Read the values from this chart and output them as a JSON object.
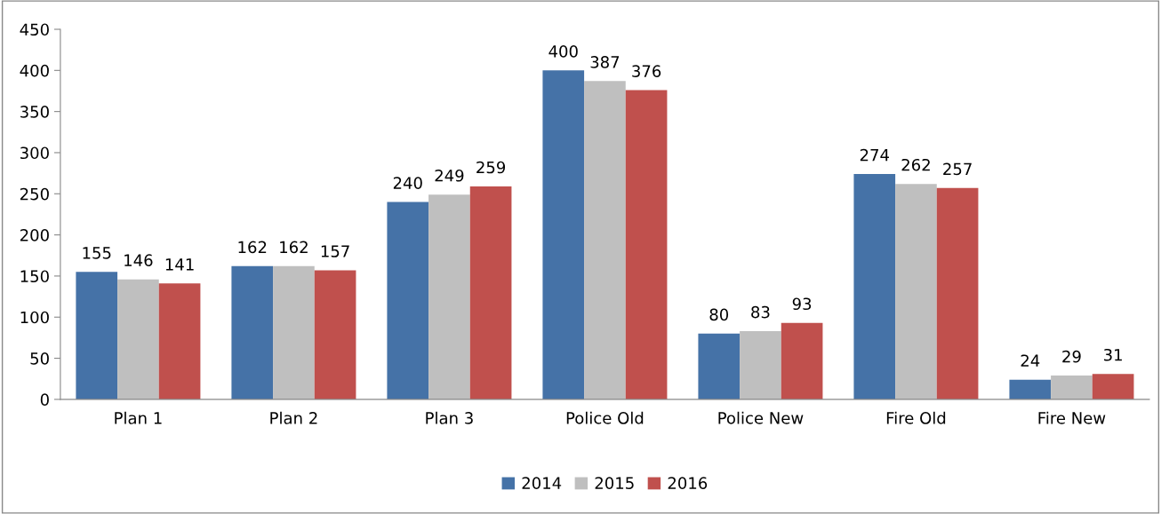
{
  "chart_data": {
    "type": "bar",
    "categories": [
      "Plan 1",
      "Plan 2",
      "Plan 3",
      "Police Old",
      "Police New",
      "Fire Old",
      "Fire New"
    ],
    "series": [
      {
        "name": "2014",
        "color": "#4572a7",
        "values": [
          155,
          162,
          240,
          400,
          80,
          274,
          24
        ]
      },
      {
        "name": "2015",
        "color": "#bfbfbf",
        "values": [
          146,
          162,
          249,
          387,
          83,
          262,
          29
        ]
      },
      {
        "name": "2016",
        "color": "#c0504d",
        "values": [
          141,
          157,
          259,
          376,
          93,
          257,
          31
        ]
      }
    ],
    "ylim": [
      0,
      450
    ],
    "yticks": [
      0,
      50,
      100,
      150,
      200,
      250,
      300,
      350,
      400,
      450
    ],
    "grid": false,
    "legend": "bottom",
    "data_labels": true
  }
}
